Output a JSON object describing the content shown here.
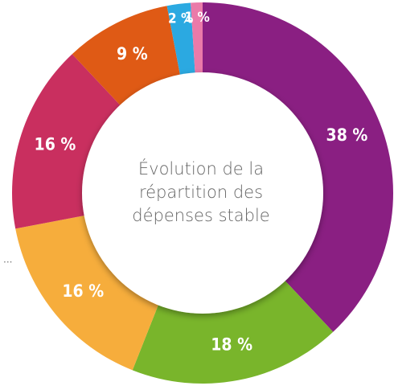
{
  "chart_data": {
    "type": "donut",
    "center_text": [
      "Évolution de la",
      "répartition des",
      "dépenses stable"
    ],
    "values": [
      38,
      18,
      16,
      16,
      9,
      2,
      1
    ],
    "value_labels": [
      "38 %",
      "18 %",
      "16 %",
      "16 %",
      "9 %",
      "2 %",
      "1 %"
    ],
    "colors": [
      "#8a1f82",
      "#79b52b",
      "#f6ad3c",
      "#c92f5f",
      "#df5a15",
      "#2ba9e1",
      "#ea7aa9"
    ]
  }
}
